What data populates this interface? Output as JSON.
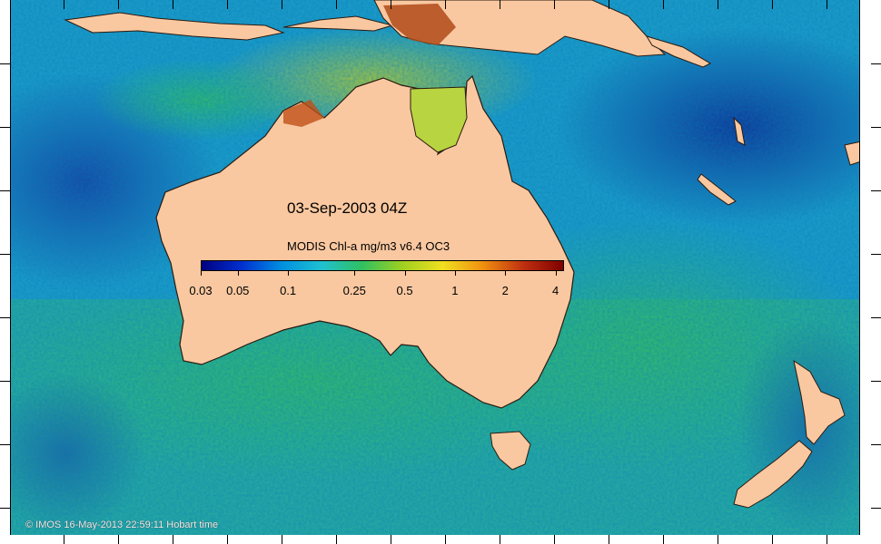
{
  "map": {
    "date_label": "03-Sep-2003 04Z",
    "colorbar_title": "MODIS Chl-a mg/m3 v6.4 OC3",
    "colorbar_ticks": [
      "0.03",
      "0.05",
      "0.1",
      "0.25",
      "0.5",
      "1",
      "2",
      "4"
    ],
    "colorbar_scale": "log",
    "colorbar_range": [
      0.03,
      4.5
    ],
    "colors": {
      "land": "#f9c8a0",
      "ocean_low": "#1040a8",
      "ocean_mid": "#20b0c8",
      "ocean_high": "#30c070",
      "bloom": "#e0a020",
      "coast_high": "#b03010",
      "colorbar_stops": [
        "#000080",
        "#0030d0",
        "#0090e0",
        "#20c0d0",
        "#30c060",
        "#a0d020",
        "#f0e020",
        "#f09010",
        "#c03010",
        "#800000"
      ]
    },
    "credit": "© IMOS 16-May-2013 22:59:11 Hobart time"
  }
}
